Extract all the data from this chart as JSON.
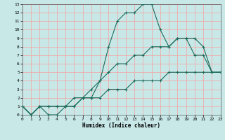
{
  "xlabel": "Humidex (Indice chaleur)",
  "xlim": [
    0,
    23
  ],
  "ylim": [
    0,
    13
  ],
  "xticks": [
    0,
    1,
    2,
    3,
    4,
    5,
    6,
    7,
    8,
    9,
    10,
    11,
    12,
    13,
    14,
    15,
    16,
    17,
    18,
    19,
    20,
    21,
    22,
    23
  ],
  "yticks": [
    0,
    1,
    2,
    3,
    4,
    5,
    6,
    7,
    8,
    9,
    10,
    11,
    12,
    13
  ],
  "bg_color": "#c8e8e8",
  "grid_color": "#f0aaaa",
  "line_color": "#1a6b5a",
  "curve1_x": [
    0,
    1,
    2,
    3,
    4,
    5,
    6,
    7,
    8,
    9,
    10,
    11,
    12,
    13,
    14,
    15,
    16,
    17,
    18,
    19,
    20,
    21,
    22,
    23
  ],
  "curve1_y": [
    1,
    0,
    1,
    0,
    0,
    1,
    1,
    2,
    2,
    4,
    8,
    11,
    12,
    12,
    13,
    13,
    10,
    8,
    9,
    9,
    7,
    7,
    5,
    5
  ],
  "curve2_x": [
    0,
    1,
    2,
    3,
    4,
    5,
    6,
    7,
    8,
    9,
    10,
    11,
    12,
    13,
    14,
    15,
    16,
    17,
    18,
    19,
    20,
    21,
    22,
    23
  ],
  "curve2_y": [
    1,
    0,
    1,
    1,
    1,
    1,
    1,
    2,
    3,
    4,
    5,
    6,
    6,
    7,
    7,
    8,
    8,
    8,
    9,
    9,
    9,
    8,
    5,
    5
  ],
  "curve3_x": [
    0,
    1,
    2,
    3,
    4,
    5,
    6,
    7,
    8,
    9,
    10,
    11,
    12,
    13,
    14,
    15,
    16,
    17,
    18,
    19,
    20,
    21,
    22,
    23
  ],
  "curve3_y": [
    1,
    0,
    1,
    1,
    1,
    1,
    2,
    2,
    2,
    2,
    3,
    3,
    3,
    4,
    4,
    4,
    4,
    5,
    5,
    5,
    5,
    5,
    5,
    5
  ]
}
